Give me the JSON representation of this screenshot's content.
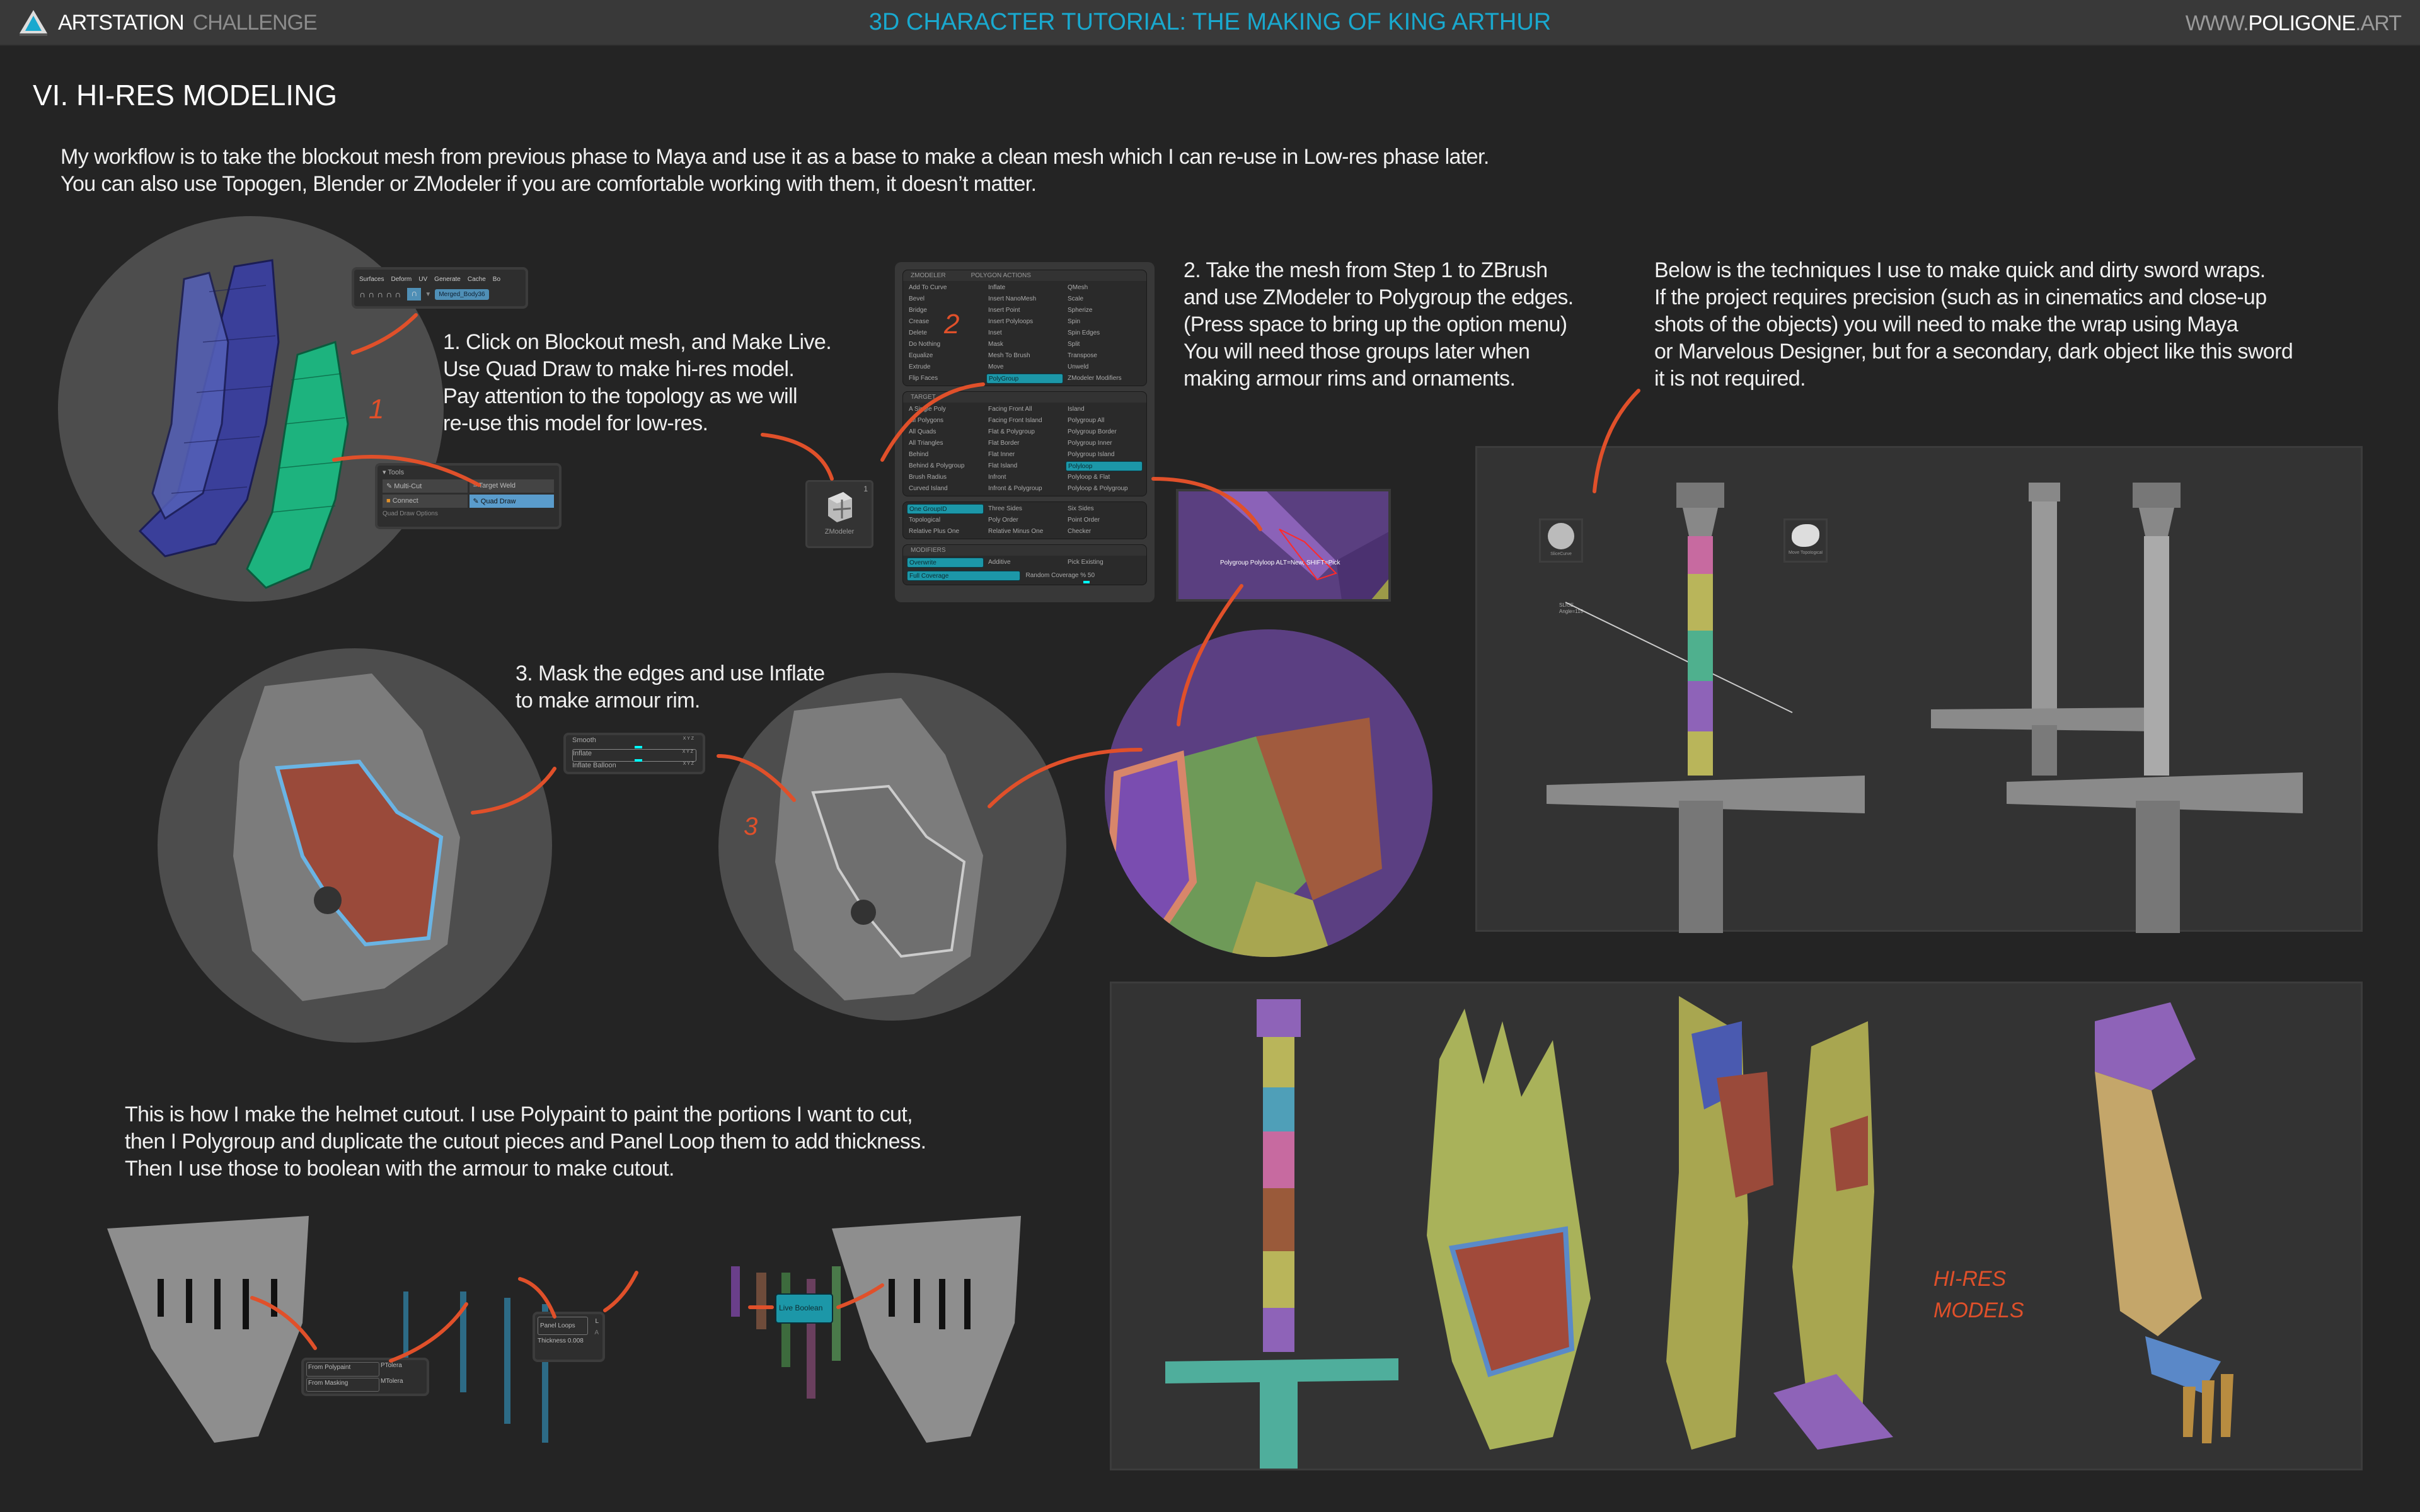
{
  "header": {
    "brand_strong": "ARTSTATION",
    "brand_light": "CHALLENGE",
    "title": "3D CHARACTER TUTORIAL: THE MAKING OF KING ARTHUR",
    "site_prefix": "WWW.",
    "site_strong": "POLIGONE",
    "site_suffix": ".ART"
  },
  "section_title": "VI. HI-RES MODELING",
  "intro": "My workflow is to take the blockout mesh from previous phase to Maya and use it as a base to make a clean mesh which I can re-use in Low-res phase later.\nYou can also use Topogen, Blender or ZModeler if you are comfortable working with them, it doesn’t matter.",
  "step1": "1. Click on Blockout mesh, and Make Live.\nUse Quad Draw to make hi-res model.\nPay attention to the topology as we will\nre-use this model for low-res.",
  "step2": "2. Take the mesh from Step 1 to ZBrush\nand use ZModeler to Polygroup the edges.\n(Press space to bring up the option menu)\nYou will need those groups later when\nmaking armour rims and ornaments.",
  "sword_note": "Below is the techniques I use to make quick and dirty sword wraps.\nIf the project requires precision (such as in cinematics and close-up\nshots of the objects) you will need to make the wrap using Maya\nor Marvelous Designer, but for a secondary, dark object like this sword\nit is not required.",
  "step3": "3. Mask the edges and use Inflate\nto make armour rim.",
  "cutout_note": "This is how I make the helmet cutout. I use Polypaint to paint the portions I want to cut,\nthen I Polygroup and duplicate the cutout pieces and Panel Loop them to add thickness.\nThen I use those to boolean with the armour to make cutout.",
  "annotations": {
    "n1": "1",
    "n2": "2",
    "n3": "3",
    "hires": "HI-RES\nMODELS"
  },
  "maya": {
    "menu": [
      "Surfaces",
      "Deform",
      "UV",
      "Generate",
      "Cache",
      "Bo"
    ],
    "object_name": "Merged_Body36",
    "tools_header": "Tools",
    "tools": [
      "Multi-Cut",
      "Target Weld",
      "Connect",
      "Quad Draw"
    ],
    "active_tool": "Quad Draw",
    "options_header": "Quad Draw Options"
  },
  "zmodeler_icon": {
    "label": "ZModeler",
    "count": "1"
  },
  "zmodeler_menu": {
    "header_left": "ZMODELER",
    "header_right": "POLYGON ACTIONS",
    "actions": [
      "Add To Curve",
      "Inflate",
      "QMesh",
      "Bevel",
      "Insert NanoMesh",
      "Scale",
      "Bridge",
      "Insert Point",
      "Spherize",
      "Crease",
      "Insert Polyloops",
      "Spin",
      "Delete",
      "Inset",
      "Spin Edges",
      "Do Nothing",
      "Mask",
      "Split",
      "Equalize",
      "Mesh To Brush",
      "Transpose",
      "Extrude",
      "Move",
      "Unweld",
      "Flip Faces",
      "PolyGroup",
      "ZModeler Modifiers"
    ],
    "active_action": "PolyGroup",
    "target_header": "TARGET",
    "targets": [
      "A Single Poly",
      "Facing Front All",
      "Island",
      "All Polygons",
      "Facing Front Island",
      "Polygroup All",
      "All Quads",
      "Flat & Polygroup",
      "Polygroup Border",
      "All Triangles",
      "Flat Border",
      "Polygroup Inner",
      "Behind",
      "Flat Inner",
      "Polygroup Island",
      "Behind & Polygroup",
      "Flat Island",
      "Polyloop",
      "Brush Radius",
      "Infront",
      "Polyloop & Flat",
      "Curved Island",
      "Infront & Polygroup",
      "Polyloop & Polygroup"
    ],
    "active_target": "Polyloop",
    "groups": [
      "One GroupID",
      "Three Sides",
      "Six Sides",
      "Topological",
      "Poly Order",
      "Point Order",
      "Relative Plus One",
      "Relative Minus One",
      "Checker"
    ],
    "active_group": "One GroupID",
    "modifiers_header": "MODIFIERS",
    "modifiers": [
      "Overwrite",
      "Additive",
      "Pick Existing"
    ],
    "active_modifier": "Overwrite",
    "coverage": "Full Coverage",
    "random_coverage": "Random Coverage % 50",
    "random_coverage_value": 50
  },
  "polyloop_tooltip": "Polygroup Polyloop ALT=New, SHIFT=Pick",
  "deformation": {
    "items": [
      "Smooth",
      "Inflate",
      "Inflate Balloon"
    ],
    "axis": "X Y Z",
    "smooth_level": 0.5,
    "inflate_level": 0.5
  },
  "sword_panel": {
    "brush1": "SliceCurve",
    "brush2": "Move Topological",
    "slice_label": "SLICE",
    "slice_angle": "Angle=115"
  },
  "polygroups": {
    "buttons": [
      "From Polypaint",
      "From Masking"
    ],
    "sliders": [
      "PTolera",
      "MTolera"
    ]
  },
  "panel_loops": {
    "button": "Panel Loops",
    "thickness": "Thickness 0.008",
    "side": "L",
    "side2": "A"
  },
  "live_boolean": "Live Boolean",
  "colors": {
    "accent_blue": "#19a9cf",
    "annotation": "#e0502a",
    "button_teal": "#1c97a8",
    "bg": "#242424",
    "header": "#393939"
  }
}
